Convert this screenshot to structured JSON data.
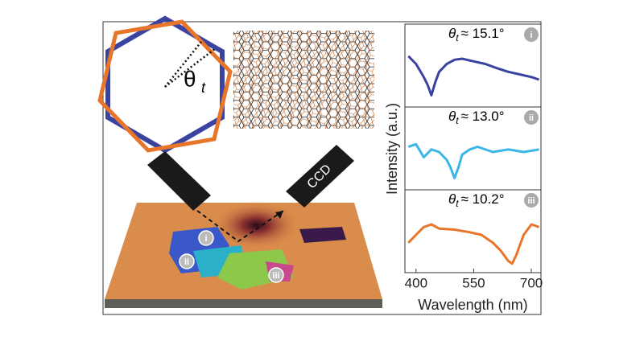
{
  "schematic": {
    "theta_symbol": "θ",
    "theta_subscript": "t",
    "detector": "CCD",
    "regions": [
      "i",
      "ii",
      "iii"
    ]
  },
  "spectra": {
    "xlabel": "Wavelength (nm)",
    "ylabel": "Intensity (a.u.)",
    "xlim": [
      371,
      725
    ],
    "xticks": [
      400,
      550,
      700
    ],
    "ylim": [
      0,
      1
    ],
    "panels": [
      {
        "symbol": "θ",
        "subscript": "t",
        "angle_text": "≈ 15.1°",
        "badge": "i",
        "color": "#3a44a0",
        "x": [
          380,
          400,
          420,
          430,
          440,
          450,
          460,
          480,
          500,
          520,
          550,
          580,
          610,
          640,
          670,
          700,
          720
        ],
        "values": [
          0.85,
          0.7,
          0.45,
          0.3,
          0.1,
          0.35,
          0.55,
          0.7,
          0.78,
          0.8,
          0.75,
          0.7,
          0.62,
          0.55,
          0.5,
          0.45,
          0.4
        ]
      },
      {
        "symbol": "θ",
        "subscript": "t",
        "angle_text": "≈ 13.0°",
        "badge": "ii",
        "color": "#3ab5e6",
        "x": [
          380,
          400,
          420,
          440,
          460,
          480,
          490,
          500,
          510,
          520,
          540,
          560,
          600,
          640,
          680,
          720
        ],
        "values": [
          0.7,
          0.75,
          0.5,
          0.65,
          0.6,
          0.45,
          0.3,
          0.1,
          0.3,
          0.55,
          0.65,
          0.7,
          0.6,
          0.65,
          0.6,
          0.65
        ]
      },
      {
        "symbol": "θ",
        "subscript": "t",
        "angle_text": "≈ 10.2°",
        "badge": "iii",
        "color": "#e8762a",
        "x": [
          380,
          400,
          420,
          440,
          460,
          500,
          540,
          570,
          600,
          620,
          640,
          650,
          660,
          680,
          700,
          720
        ],
        "values": [
          0.45,
          0.6,
          0.75,
          0.8,
          0.72,
          0.7,
          0.65,
          0.6,
          0.45,
          0.3,
          0.1,
          0.05,
          0.2,
          0.6,
          0.8,
          0.75
        ]
      }
    ]
  }
}
